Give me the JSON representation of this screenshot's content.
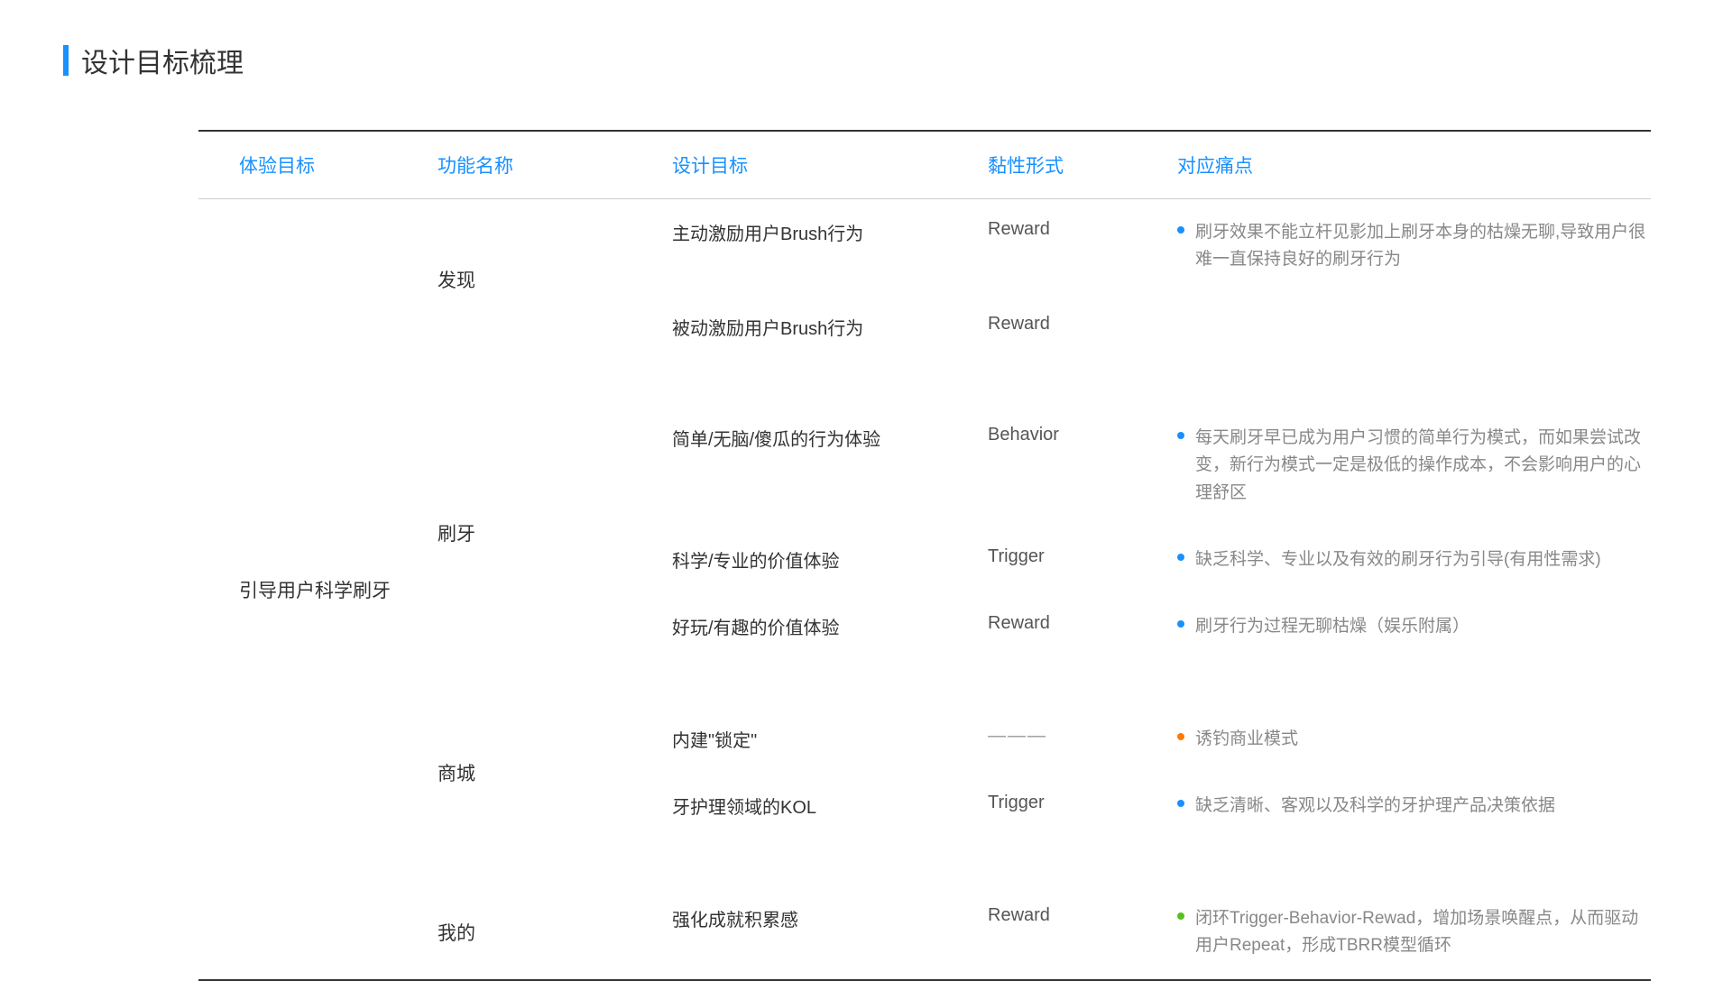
{
  "title": "设计目标梳理",
  "headers": {
    "experience": "体验目标",
    "feature": "功能名称",
    "design": "设计目标",
    "sticky": "黏性形式",
    "pain": "对应痛点"
  },
  "experience_goal": "引导用户科学刷牙",
  "colors": {
    "accent": "#1890ff",
    "bullet_blue": "#1890ff",
    "bullet_orange": "#ff7a00",
    "bullet_green": "#52c41a",
    "text_dark": "#333333",
    "text_gray": "#888888"
  },
  "groups": [
    {
      "feature": "发现",
      "rows": [
        {
          "design": "主动激励用户Brush行为",
          "sticky": "Reward",
          "pain": "刷牙效果不能立杆见影加上刷牙本身的枯燥无聊,导致用户很难一直保持良好的刷牙行为",
          "bullet_color": "#1890ff"
        },
        {
          "design": "被动激励用户Brush行为",
          "sticky": "Reward",
          "pain": "",
          "bullet_color": ""
        }
      ]
    },
    {
      "feature": "刷牙",
      "rows": [
        {
          "design": "简单/无脑/傻瓜的行为体验",
          "sticky": "Behavior",
          "pain": "每天刷牙早已成为用户习惯的简单行为模式，而如果尝试改变，新行为模式一定是极低的操作成本，不会影响用户的心理舒区",
          "bullet_color": "#1890ff"
        },
        {
          "design": "科学/专业的价值体验",
          "sticky": "Trigger",
          "pain": "缺乏科学、专业以及有效的刷牙行为引导(有用性需求)",
          "bullet_color": "#1890ff"
        },
        {
          "design": "好玩/有趣的价值体验",
          "sticky": "Reward",
          "pain": "刷牙行为过程无聊枯燥（娱乐附属）",
          "bullet_color": "#1890ff"
        }
      ]
    },
    {
      "feature": "商城",
      "rows": [
        {
          "design": "内建\"锁定\"",
          "sticky": "———",
          "sticky_dash": true,
          "pain": "诱钓商业模式",
          "bullet_color": "#ff7a00"
        },
        {
          "design": "牙护理领域的KOL",
          "sticky": "Trigger",
          "pain": "缺乏清晰、客观以及科学的牙护理产品决策依据",
          "bullet_color": "#1890ff"
        }
      ]
    },
    {
      "feature": "我的",
      "rows": [
        {
          "design": "强化成就积累感",
          "sticky": "Reward",
          "pain": "闭环Trigger-Behavior-Rewad，增加场景唤醒点，从而驱动用户Repeat，形成TBRR模型循环",
          "bullet_color": "#52c41a"
        }
      ]
    }
  ]
}
